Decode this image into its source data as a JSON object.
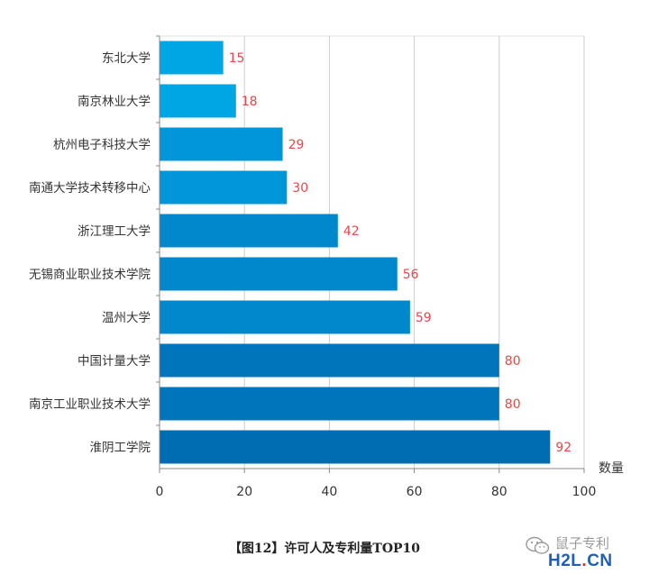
{
  "caption": "【图12】许可人及专利量TOP10",
  "watermark": {
    "text": "鼠子专利",
    "site_main": "H2L",
    "site_dot": ".",
    "site_tld": "CN",
    "icon": "wechat-icon"
  },
  "chart_data": {
    "type": "bar",
    "orientation": "horizontal",
    "categories": [
      "东北大学",
      "南京林业大学",
      "杭州电子科技大学",
      "南通大学技术转移中心",
      "浙江理工大学",
      "无锡商业职业技术学院",
      "温州大学",
      "中国计量大学",
      "南京工业职业技术大学",
      "淮阴工学院"
    ],
    "values": [
      15,
      18,
      29,
      30,
      42,
      56,
      59,
      80,
      80,
      92
    ],
    "colors": [
      "#00a6e4",
      "#00a6e4",
      "#0195da",
      "#0195da",
      "#0187cb",
      "#0187cb",
      "#0187cb",
      "#0075bc",
      "#0075bc",
      "#006db3"
    ],
    "value_label_color": "#e8474a",
    "xlabel": "数量",
    "ylabel": "",
    "xlim": [
      0,
      100
    ],
    "xticks": [
      0,
      20,
      40,
      60,
      80,
      100
    ],
    "grid": true
  }
}
